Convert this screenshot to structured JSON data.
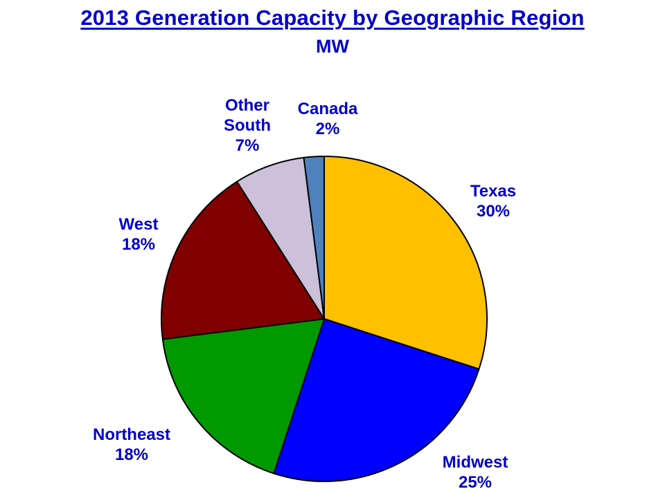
{
  "chart_data": {
    "type": "pie",
    "title": "2013 Generation Capacity by Geographic Region",
    "subtitle": "MW",
    "slices": [
      {
        "label": "Texas",
        "value": 30,
        "pct_label": "30%",
        "color": "#FFC000"
      },
      {
        "label": "Midwest",
        "value": 25,
        "pct_label": "25%",
        "color": "#0000FF"
      },
      {
        "label": "Northeast",
        "value": 18,
        "pct_label": "18%",
        "color": "#009900"
      },
      {
        "label": "West",
        "value": 18,
        "pct_label": "18%",
        "color": "#800000"
      },
      {
        "label": "Other South",
        "value": 7,
        "pct_label": "7%",
        "color": "#CCC0DA"
      },
      {
        "label": "Canada",
        "value": 2,
        "pct_label": "2%",
        "color": "#4F81BD"
      }
    ]
  }
}
